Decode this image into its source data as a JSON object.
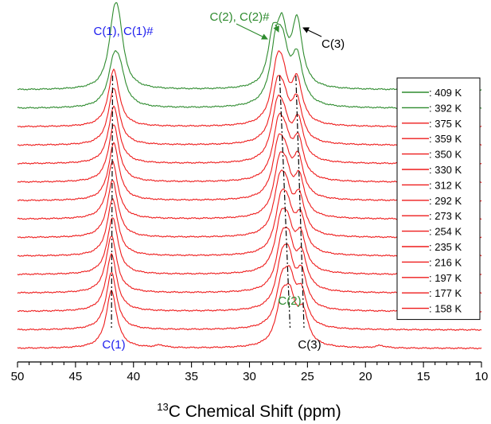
{
  "chart_data": {
    "type": "line",
    "title": "",
    "xlabel_prefix": "13",
    "xlabel": "C Chemical Shift (ppm)",
    "ylabel": "",
    "xlim": [
      50,
      10
    ],
    "x_reversed": true,
    "x_ticks": [
      50,
      45,
      40,
      35,
      30,
      25,
      20,
      15,
      10
    ],
    "legend_position": "right",
    "series": [
      {
        "name": ": 409 K",
        "color": "#2e8b2e",
        "peaks": [
          {
            "x": 41.7,
            "h": 62,
            "w": 0.55
          },
          {
            "x": 41.3,
            "h": 62,
            "w": 0.55
          },
          {
            "x": 28.0,
            "h": 58,
            "w": 0.5
          },
          {
            "x": 27.2,
            "h": 68,
            "w": 0.5
          },
          {
            "x": 25.9,
            "h": 82,
            "w": 0.55
          }
        ]
      },
      {
        "name": ": 392 K",
        "color": "#2e8b2e",
        "peaks": [
          {
            "x": 41.7,
            "h": 48,
            "w": 0.6
          },
          {
            "x": 41.2,
            "h": 36,
            "w": 0.6
          },
          {
            "x": 27.7,
            "h": 74,
            "w": 0.6
          },
          {
            "x": 27.1,
            "h": 50,
            "w": 0.55
          },
          {
            "x": 25.9,
            "h": 58,
            "w": 0.6
          }
        ]
      },
      {
        "name": ": 375 K",
        "color": "#ee1c1c",
        "peaks": [
          {
            "x": 41.7,
            "h": 72,
            "w": 0.55
          },
          {
            "x": 27.6,
            "h": 68,
            "w": 0.6
          },
          {
            "x": 27.1,
            "h": 36,
            "w": 0.55
          },
          {
            "x": 25.9,
            "h": 52,
            "w": 0.55
          }
        ]
      },
      {
        "name": ": 359 K",
        "color": "#ee1c1c",
        "peaks": [
          {
            "x": 41.7,
            "h": 72,
            "w": 0.55
          },
          {
            "x": 27.6,
            "h": 66,
            "w": 0.6
          },
          {
            "x": 27.0,
            "h": 34,
            "w": 0.55
          },
          {
            "x": 25.9,
            "h": 50,
            "w": 0.55
          }
        ]
      },
      {
        "name": ": 350 K",
        "color": "#ee1c1c",
        "peaks": [
          {
            "x": 41.7,
            "h": 72,
            "w": 0.55
          },
          {
            "x": 27.6,
            "h": 64,
            "w": 0.6
          },
          {
            "x": 27.0,
            "h": 34,
            "w": 0.55
          },
          {
            "x": 25.8,
            "h": 50,
            "w": 0.55
          }
        ]
      },
      {
        "name": ": 330 K",
        "color": "#ee1c1c",
        "peaks": [
          {
            "x": 41.7,
            "h": 72,
            "w": 0.55
          },
          {
            "x": 27.5,
            "h": 64,
            "w": 0.6
          },
          {
            "x": 26.9,
            "h": 34,
            "w": 0.55
          },
          {
            "x": 25.8,
            "h": 48,
            "w": 0.55
          }
        ]
      },
      {
        "name": ": 312 K",
        "color": "#ee1c1c",
        "peaks": [
          {
            "x": 41.7,
            "h": 72,
            "w": 0.55
          },
          {
            "x": 27.5,
            "h": 62,
            "w": 0.6
          },
          {
            "x": 26.9,
            "h": 34,
            "w": 0.55
          },
          {
            "x": 25.8,
            "h": 48,
            "w": 0.55
          }
        ]
      },
      {
        "name": ": 292 K",
        "color": "#ee1c1c",
        "peaks": [
          {
            "x": 41.8,
            "h": 72,
            "w": 0.55
          },
          {
            "x": 27.4,
            "h": 62,
            "w": 0.6
          },
          {
            "x": 26.8,
            "h": 36,
            "w": 0.55
          },
          {
            "x": 25.7,
            "h": 46,
            "w": 0.55
          }
        ]
      },
      {
        "name": ": 273 K",
        "color": "#ee1c1c",
        "peaks": [
          {
            "x": 41.8,
            "h": 72,
            "w": 0.55
          },
          {
            "x": 27.4,
            "h": 60,
            "w": 0.6
          },
          {
            "x": 26.8,
            "h": 38,
            "w": 0.55
          },
          {
            "x": 25.7,
            "h": 46,
            "w": 0.55
          }
        ]
      },
      {
        "name": ": 254 K",
        "color": "#ee1c1c",
        "peaks": [
          {
            "x": 41.8,
            "h": 72,
            "w": 0.55
          },
          {
            "x": 27.3,
            "h": 58,
            "w": 0.6
          },
          {
            "x": 26.7,
            "h": 40,
            "w": 0.55
          },
          {
            "x": 25.6,
            "h": 44,
            "w": 0.55
          }
        ]
      },
      {
        "name": ": 235 K",
        "color": "#ee1c1c",
        "peaks": [
          {
            "x": 41.8,
            "h": 72,
            "w": 0.55
          },
          {
            "x": 27.3,
            "h": 56,
            "w": 0.6
          },
          {
            "x": 26.7,
            "h": 42,
            "w": 0.55
          },
          {
            "x": 25.6,
            "h": 44,
            "w": 0.55
          }
        ]
      },
      {
        "name": ": 216 K",
        "color": "#ee1c1c",
        "peaks": [
          {
            "x": 41.9,
            "h": 72,
            "w": 0.55
          },
          {
            "x": 27.2,
            "h": 54,
            "w": 0.6
          },
          {
            "x": 26.6,
            "h": 44,
            "w": 0.55
          },
          {
            "x": 25.5,
            "h": 42,
            "w": 0.55
          }
        ]
      },
      {
        "name": ": 197 K",
        "color": "#ee1c1c",
        "peaks": [
          {
            "x": 41.9,
            "h": 72,
            "w": 0.55
          },
          {
            "x": 27.2,
            "h": 54,
            "w": 0.6
          },
          {
            "x": 26.6,
            "h": 46,
            "w": 0.55
          },
          {
            "x": 25.5,
            "h": 42,
            "w": 0.55
          }
        ]
      },
      {
        "name": ": 177 K",
        "color": "#ee1c1c",
        "peaks": [
          {
            "x": 41.9,
            "h": 72,
            "w": 0.55
          },
          {
            "x": 27.2,
            "h": 52,
            "w": 0.6
          },
          {
            "x": 26.5,
            "h": 48,
            "w": 0.55
          },
          {
            "x": 25.5,
            "h": 40,
            "w": 0.55
          }
        ]
      },
      {
        "name": ": 158 K",
        "color": "#ee1c1c",
        "peaks": [
          {
            "x": 41.9,
            "h": 72,
            "w": 0.55
          },
          {
            "x": 37.7,
            "h": 3,
            "w": 0.5
          },
          {
            "x": 27.2,
            "h": 52,
            "w": 0.6
          },
          {
            "x": 26.5,
            "h": 50,
            "w": 0.55
          },
          {
            "x": 25.4,
            "h": 40,
            "w": 0.55
          },
          {
            "x": 18.7,
            "h": 3,
            "w": 0.5
          }
        ]
      }
    ],
    "annotations": [
      {
        "text": "C(1), C(1)#",
        "color": "#1c1cee"
      },
      {
        "text": "C(2), C(2)#",
        "color": "#2e8b2e"
      },
      {
        "text": "C(3)",
        "color": "#000000"
      },
      {
        "text": "C(1)",
        "color": "#1c1cee"
      },
      {
        "text": "C(2)",
        "color": "#2e8b2e"
      },
      {
        "text": "C(3)",
        "color": "#000000"
      }
    ],
    "guide_lines": [
      {
        "from_x": 41.8,
        "to_x": 41.9
      },
      {
        "from_x": 27.4,
        "to_x": 26.5
      },
      {
        "from_x": 26.0,
        "to_x": 25.3
      }
    ]
  }
}
